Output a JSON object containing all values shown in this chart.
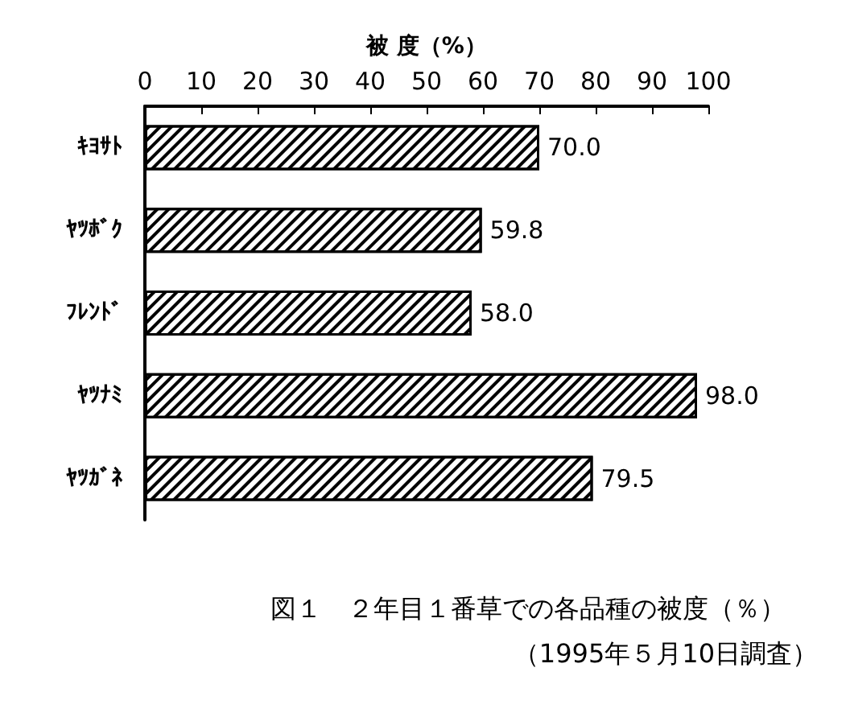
{
  "chart_data": {
    "type": "bar",
    "orientation": "horizontal",
    "xlabel": "被 度（%）",
    "categories": [
      "ｷﾖｻﾄ",
      "ﾔﾂﾎﾞｸ",
      "ﾌﾚﾝﾄﾞ",
      "ﾔﾂﾅﾐ",
      "ﾔﾂｶﾞﾈ"
    ],
    "values": [
      70.0,
      59.8,
      58.0,
      98.0,
      79.5
    ],
    "value_labels": [
      "70.0",
      "59.8",
      "58.0",
      "98.0",
      "79.5"
    ],
    "color": "#ffffff",
    "xlim": [
      0,
      100
    ],
    "xticks": [
      0,
      10,
      20,
      30,
      40,
      50,
      60,
      70,
      80,
      90,
      100
    ],
    "annotations": [
      "図１　２年目１番草での各品種の被度（％）",
      "（1995年５月10日調査）"
    ]
  }
}
